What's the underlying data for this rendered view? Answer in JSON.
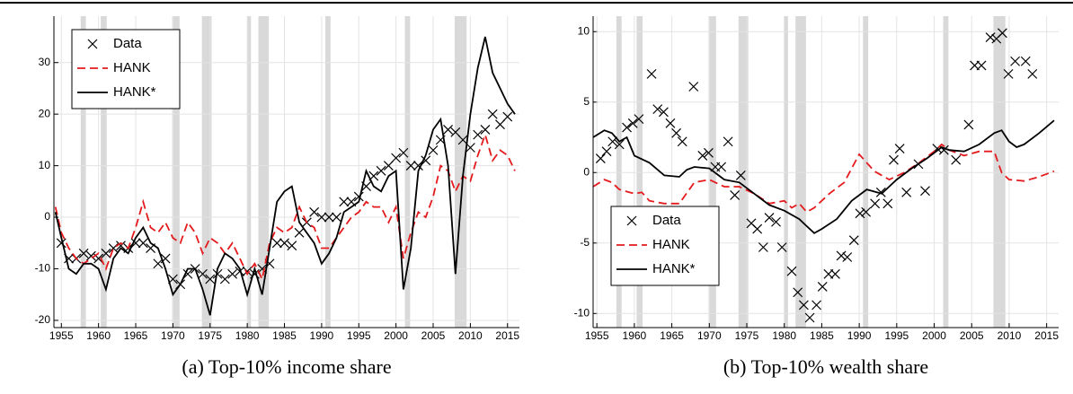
{
  "chart_data": [
    {
      "type": "line",
      "caption": "(a) Top-10% income share",
      "xlim": [
        1954,
        2016.6
      ],
      "ylim": [
        -21.4,
        39
      ],
      "xticks": [
        1955,
        1960,
        1965,
        1970,
        1975,
        1980,
        1985,
        1990,
        1995,
        2000,
        2005,
        2010,
        2015
      ],
      "yticks": [
        -20,
        -10,
        0,
        10,
        20,
        30
      ],
      "grid": true,
      "legend": "upper left",
      "shaded_regions": [
        [
          1957.6,
          1958.3
        ],
        [
          1960.3,
          1961.1
        ],
        [
          1969.9,
          1970.9
        ],
        [
          1973.9,
          1975.2
        ],
        [
          1980.0,
          1980.5
        ],
        [
          1981.5,
          1982.9
        ],
        [
          1990.5,
          1991.2
        ],
        [
          2001.2,
          2001.9
        ],
        [
          2007.9,
          2009.5
        ]
      ],
      "series": [
        {
          "name": "Data",
          "color": "#000000",
          "style": "markers",
          "x": [
            1955,
            1956,
            1957,
            1958,
            1959,
            1960,
            1961,
            1962,
            1963,
            1964,
            1965,
            1966,
            1967,
            1968,
            1969,
            1970,
            1971,
            1972,
            1973,
            1974,
            1975,
            1976,
            1977,
            1978,
            1979,
            1980,
            1981,
            1982,
            1983,
            1984,
            1985,
            1986,
            1987,
            1988,
            1989,
            1990,
            1991,
            1992,
            1993,
            1994,
            1995,
            1996,
            1997,
            1998,
            1999,
            2000,
            2001,
            2002,
            2003,
            2004,
            2005,
            2006,
            2007,
            2008,
            2009,
            2010,
            2011,
            2012,
            2013,
            2014,
            2015
          ],
          "values": [
            -5,
            -8,
            -8,
            -7,
            -7.5,
            -8,
            -7,
            -6,
            -5.5,
            -6,
            -5,
            -5,
            -6,
            -9,
            -8,
            -12,
            -13,
            -11,
            -10,
            -11,
            -12,
            -11,
            -12,
            -11,
            -10.5,
            -10.5,
            -11,
            -10,
            -9,
            -5,
            -5,
            -5.5,
            -3,
            -1,
            1,
            0,
            0,
            0,
            3,
            3,
            4,
            6,
            8,
            9,
            10,
            11.5,
            12.5,
            10,
            10,
            11,
            13,
            15,
            17,
            16.5,
            15,
            13.5,
            16,
            17,
            20,
            18,
            19.5
          ]
        },
        {
          "name": "HANK",
          "color": "#e41a1c",
          "style": "dashed",
          "x": [
            1954.2,
            1955,
            1956,
            1957,
            1958,
            1959,
            1960,
            1961,
            1962,
            1963,
            1964,
            1965,
            1966,
            1967,
            1968,
            1969,
            1970,
            1971,
            1972,
            1973,
            1974,
            1975,
            1976,
            1977,
            1978,
            1979,
            1980,
            1981,
            1982,
            1983,
            1984,
            1985,
            1986,
            1987,
            1988,
            1989,
            1990,
            1991,
            1992,
            1993,
            1994,
            1995,
            1996,
            1997,
            1998,
            1999,
            2000,
            2001,
            2002,
            2003,
            2004,
            2005,
            2006,
            2007,
            2008,
            2009,
            2010,
            2011,
            2012,
            2013,
            2014,
            2015,
            2016
          ],
          "values": [
            2,
            -3,
            -6,
            -8,
            -9,
            -8,
            -7,
            -10,
            -6,
            -5,
            -6,
            -2,
            3,
            -2,
            -3,
            -1,
            -4,
            -5,
            -1,
            -3,
            -7,
            -4,
            -5,
            -7,
            -5,
            -8,
            -11,
            -9,
            -12,
            -5,
            -2,
            -3,
            -2,
            2,
            -1,
            -2,
            -6,
            -6,
            -4,
            -2,
            0,
            1,
            3,
            2,
            2,
            -1,
            2,
            -8,
            -3,
            1,
            0,
            4,
            10,
            9,
            5,
            8,
            7,
            12,
            16,
            11,
            13,
            12,
            9
          ]
        },
        {
          "name": "HANK*",
          "color": "#000000",
          "style": "solid",
          "x": [
            1954.2,
            1955,
            1956,
            1957,
            1958,
            1959,
            1960,
            1961,
            1962,
            1963,
            1964,
            1965,
            1966,
            1967,
            1968,
            1969,
            1970,
            1971,
            1972,
            1973,
            1974,
            1975,
            1976,
            1977,
            1978,
            1979,
            1980,
            1981,
            1982,
            1983,
            1984,
            1985,
            1986,
            1987,
            1988,
            1989,
            1990,
            1991,
            1992,
            1993,
            1994,
            1995,
            1996,
            1997,
            1998,
            1999,
            2000,
            2001,
            2002,
            2003,
            2004,
            2005,
            2006,
            2007,
            2008,
            2009,
            2010,
            2011,
            2012,
            2013,
            2014,
            2015,
            2016
          ],
          "values": [
            1,
            -4,
            -10,
            -11,
            -9,
            -9,
            -10,
            -14,
            -8,
            -6,
            -7,
            -4,
            -2,
            -5,
            -6,
            -10,
            -15,
            -13,
            -10,
            -10,
            -14,
            -19,
            -10,
            -7,
            -8,
            -10,
            -15,
            -10,
            -15,
            -6,
            3,
            5,
            6,
            -1,
            -3,
            -5,
            -9,
            -7,
            -4,
            1,
            2,
            3,
            9,
            6,
            5,
            8,
            9,
            -14,
            -6,
            9,
            12,
            17,
            19,
            10,
            -11,
            8,
            20,
            29,
            35,
            28,
            25,
            22,
            20
          ]
        }
      ]
    },
    {
      "type": "line",
      "caption": "(b) Top-10% wealth share",
      "xlim": [
        1954.5,
        2016.6
      ],
      "ylim": [
        -11,
        11.1
      ],
      "xticks": [
        1955,
        1960,
        1965,
        1970,
        1975,
        1980,
        1985,
        1990,
        1995,
        2000,
        2005,
        2010,
        2015
      ],
      "yticks": [
        -10,
        -5,
        0,
        5,
        10
      ],
      "grid": true,
      "legend": "lower left",
      "shaded_regions": [
        [
          1957.6,
          1958.3
        ],
        [
          1960.3,
          1961.1
        ],
        [
          1969.9,
          1970.9
        ],
        [
          1973.9,
          1975.2
        ],
        [
          1980.0,
          1980.5
        ],
        [
          1981.5,
          1982.9
        ],
        [
          1990.5,
          1991.2
        ],
        [
          2001.2,
          2001.9
        ],
        [
          2007.9,
          2009.5
        ]
      ],
      "series": [
        {
          "name": "Data",
          "color": "#000000",
          "style": "markers",
          "x": [
            1955.5,
            1956.3,
            1957.1,
            1958,
            1959,
            1959.8,
            1960.6,
            1962.3,
            1963.1,
            1963.9,
            1964.8,
            1965.6,
            1966.4,
            1967.9,
            1969.1,
            1969.9,
            1970.8,
            1971.6,
            1972.5,
            1973.4,
            1974.2,
            1975.6,
            1976.4,
            1977.2,
            1978,
            1978.9,
            1979.7,
            1981,
            1981.8,
            1982.6,
            1983.4,
            1984.3,
            1985.1,
            1985.9,
            1986.8,
            1987.6,
            1988.4,
            1989.3,
            1990.1,
            1990.9,
            1992.1,
            1992.9,
            1993.8,
            1994.6,
            1995.4,
            1996.3,
            1997.9,
            1998.8,
            2000.4,
            2001.3,
            2002.9,
            2004.6,
            2005.4,
            2006.3,
            2007.5,
            2008.3,
            2009.1,
            2009.9,
            2010.8,
            2012.2,
            2013.1
          ],
          "values": [
            1,
            1.5,
            2.2,
            2,
            3.2,
            3.5,
            3.8,
            7,
            4.5,
            4.3,
            3.5,
            2.8,
            2.2,
            6.1,
            1.2,
            1.4,
            0.4,
            0.4,
            2.2,
            -1.6,
            -0.2,
            -3.6,
            -4,
            -5.3,
            -3.2,
            -3.5,
            -5.3,
            -7,
            -8.5,
            -9.4,
            -10.3,
            -9.4,
            -8.1,
            -7.2,
            -7.2,
            -5.9,
            -6,
            -4.8,
            -2.9,
            -2.8,
            -2.2,
            -1.4,
            -2.2,
            0.9,
            1.7,
            -1.4,
            0.6,
            -1.3,
            1.7,
            1.6,
            0.9,
            3.4,
            7.6,
            7.6,
            9.6,
            9.5,
            9.9,
            7,
            7.9,
            7.9,
            7
          ]
        },
        {
          "name": "HANK",
          "color": "#e41a1c",
          "style": "dashed",
          "x": [
            1954.5,
            1956,
            1957,
            1958,
            1960,
            1961,
            1962,
            1964,
            1966,
            1968,
            1970,
            1972,
            1974,
            1976,
            1978,
            1980,
            1981,
            1982,
            1983,
            1984,
            1986,
            1988,
            1990,
            1992,
            1994,
            1996,
            1998,
            2000,
            2001,
            2002,
            2004,
            2006,
            2008,
            2009,
            2010,
            2012,
            2014,
            2016
          ],
          "values": [
            -1,
            -0.5,
            -0.7,
            -1.2,
            -1.5,
            -1.4,
            -2,
            -2.2,
            -2.2,
            -0.7,
            -0.5,
            -1,
            -1,
            -1.5,
            -2.2,
            -2,
            -2.5,
            -2.2,
            -2.8,
            -2.5,
            -1.5,
            -0.7,
            1.3,
            0.1,
            -0.5,
            0,
            0.7,
            1.5,
            2,
            1.6,
            1.2,
            1.5,
            1.5,
            0,
            -0.5,
            -0.6,
            -0.3,
            0.1
          ]
        },
        {
          "name": "HANK*",
          "color": "#000000",
          "style": "solid",
          "x": [
            1954.5,
            1956,
            1957,
            1958,
            1959,
            1960,
            1962,
            1964,
            1966,
            1967,
            1968,
            1970,
            1972,
            1974,
            1976,
            1978,
            1980,
            1982,
            1983,
            1984,
            1985,
            1987,
            1989,
            1991,
            1993,
            1995,
            1997,
            1999,
            2001,
            2002,
            2004,
            2006,
            2008,
            2009,
            2010,
            2011,
            2012,
            2014,
            2016
          ],
          "values": [
            2.5,
            3,
            2.8,
            2.2,
            2.5,
            1.2,
            0.7,
            -0.2,
            -0.3,
            0.2,
            0.4,
            0.3,
            -0.5,
            -0.7,
            -1.5,
            -2.3,
            -2.7,
            -3.3,
            -3.8,
            -4.3,
            -4,
            -3.3,
            -2,
            -1.2,
            -1.5,
            -0.5,
            0.3,
            1,
            1.8,
            1.6,
            1.5,
            2,
            2.8,
            3,
            2.2,
            1.8,
            2,
            2.8,
            3.7
          ]
        }
      ]
    }
  ]
}
